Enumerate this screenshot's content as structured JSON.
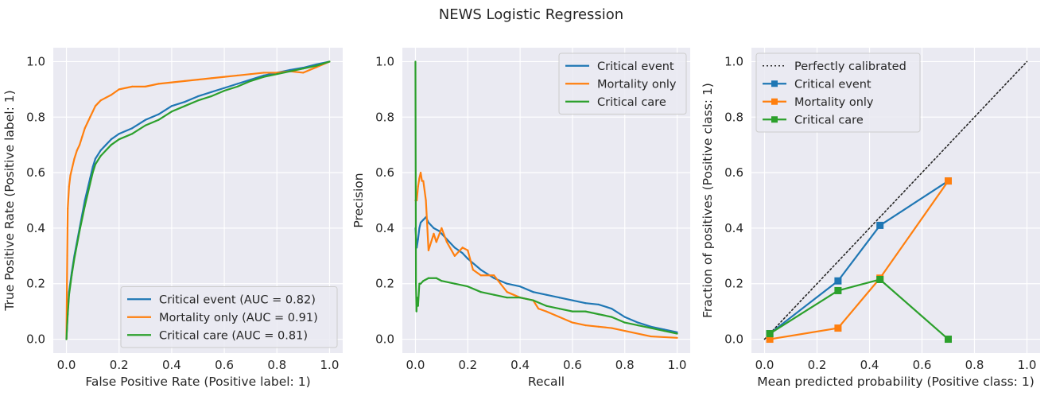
{
  "figure": {
    "title": "NEWS Logistic Regression",
    "background": "#ffffff",
    "axes_facecolor": "#eaeaf2",
    "grid_color": "#ffffff"
  },
  "chart_data": [
    {
      "type": "line",
      "id": "roc",
      "xlabel": "False Positive Rate (Positive label: 1)",
      "ylabel": "True Positive Rate (Positive label: 1)",
      "xlim": [
        -0.05,
        1.05
      ],
      "ylim": [
        -0.05,
        1.05
      ],
      "xticks": [
        0.0,
        0.2,
        0.4,
        0.6,
        0.8,
        1.0
      ],
      "xtick_labels": [
        "0.0",
        "0.2",
        "0.4",
        "0.6",
        "0.8",
        "1.0"
      ],
      "yticks": [
        0.0,
        0.2,
        0.4,
        0.6,
        0.8,
        1.0
      ],
      "ytick_labels": [
        "0.0",
        "0.2",
        "0.4",
        "0.6",
        "0.8",
        "1.0"
      ],
      "grid": true,
      "legend": "lower-right",
      "series": [
        {
          "name": "Critical event (AUC = 0.82)",
          "color": "#1f77b4",
          "style": "solid",
          "marker": "none",
          "x": [
            0,
            0.005,
            0.01,
            0.02,
            0.03,
            0.05,
            0.07,
            0.09,
            0.1,
            0.11,
            0.13,
            0.15,
            0.17,
            0.2,
            0.25,
            0.3,
            0.35,
            0.4,
            0.45,
            0.5,
            0.55,
            0.6,
            0.65,
            0.7,
            0.75,
            0.8,
            0.85,
            0.9,
            0.95,
            1.0
          ],
          "y": [
            0,
            0.1,
            0.17,
            0.24,
            0.3,
            0.4,
            0.5,
            0.58,
            0.62,
            0.65,
            0.68,
            0.7,
            0.72,
            0.74,
            0.76,
            0.79,
            0.81,
            0.84,
            0.855,
            0.875,
            0.89,
            0.905,
            0.92,
            0.935,
            0.95,
            0.96,
            0.97,
            0.978,
            0.99,
            1.0
          ]
        },
        {
          "name": "Mortality only (AUC = 0.91)",
          "color": "#ff7f0e",
          "style": "solid",
          "marker": "none",
          "x": [
            0,
            0.003,
            0.005,
            0.01,
            0.015,
            0.02,
            0.03,
            0.04,
            0.05,
            0.06,
            0.07,
            0.08,
            0.09,
            0.1,
            0.11,
            0.12,
            0.13,
            0.15,
            0.17,
            0.2,
            0.25,
            0.3,
            0.35,
            0.4,
            0.45,
            0.5,
            0.55,
            0.6,
            0.65,
            0.7,
            0.75,
            0.8,
            0.85,
            0.9,
            0.95,
            1.0
          ],
          "y": [
            0,
            0.3,
            0.47,
            0.55,
            0.59,
            0.61,
            0.65,
            0.68,
            0.7,
            0.73,
            0.76,
            0.78,
            0.8,
            0.82,
            0.84,
            0.85,
            0.86,
            0.87,
            0.88,
            0.9,
            0.91,
            0.91,
            0.92,
            0.925,
            0.93,
            0.935,
            0.94,
            0.945,
            0.95,
            0.955,
            0.96,
            0.96,
            0.965,
            0.96,
            0.98,
            1.0
          ]
        },
        {
          "name": "Critical care (AUC = 0.81)",
          "color": "#2ca02c",
          "style": "solid",
          "marker": "none",
          "x": [
            0,
            0.005,
            0.01,
            0.02,
            0.03,
            0.05,
            0.07,
            0.09,
            0.1,
            0.11,
            0.13,
            0.15,
            0.17,
            0.2,
            0.25,
            0.3,
            0.35,
            0.4,
            0.45,
            0.5,
            0.55,
            0.6,
            0.65,
            0.7,
            0.75,
            0.8,
            0.85,
            0.9,
            0.95,
            1.0
          ],
          "y": [
            0,
            0.09,
            0.16,
            0.23,
            0.29,
            0.39,
            0.48,
            0.56,
            0.6,
            0.63,
            0.66,
            0.68,
            0.7,
            0.72,
            0.74,
            0.77,
            0.79,
            0.82,
            0.84,
            0.86,
            0.875,
            0.895,
            0.91,
            0.93,
            0.945,
            0.955,
            0.965,
            0.975,
            0.985,
            1.0
          ]
        }
      ]
    },
    {
      "type": "line",
      "id": "pr",
      "xlabel": "Recall",
      "ylabel": "Precision",
      "xlim": [
        -0.05,
        1.05
      ],
      "ylim": [
        -0.05,
        1.05
      ],
      "xticks": [
        0.0,
        0.2,
        0.4,
        0.6,
        0.8,
        1.0
      ],
      "xtick_labels": [
        "0.0",
        "0.2",
        "0.4",
        "0.6",
        "0.8",
        "1.0"
      ],
      "yticks": [
        0.0,
        0.2,
        0.4,
        0.6,
        0.8,
        1.0
      ],
      "ytick_labels": [
        "0.0",
        "0.2",
        "0.4",
        "0.6",
        "0.8",
        "1.0"
      ],
      "grid": true,
      "legend": "upper-right",
      "series": [
        {
          "name": "Critical event",
          "color": "#1f77b4",
          "style": "solid",
          "marker": "none",
          "x": [
            0,
            0.005,
            0.01,
            0.015,
            0.02,
            0.03,
            0.04,
            0.05,
            0.07,
            0.09,
            0.1,
            0.12,
            0.15,
            0.18,
            0.2,
            0.25,
            0.3,
            0.35,
            0.4,
            0.45,
            0.5,
            0.55,
            0.6,
            0.65,
            0.7,
            0.75,
            0.8,
            0.85,
            0.9,
            0.95,
            1.0
          ],
          "y": [
            0.4,
            0.33,
            0.36,
            0.4,
            0.42,
            0.43,
            0.44,
            0.42,
            0.4,
            0.39,
            0.38,
            0.36,
            0.33,
            0.31,
            0.29,
            0.25,
            0.22,
            0.2,
            0.19,
            0.17,
            0.16,
            0.15,
            0.14,
            0.13,
            0.125,
            0.11,
            0.08,
            0.06,
            0.045,
            0.035,
            0.025
          ]
        },
        {
          "name": "Mortality only",
          "color": "#ff7f0e",
          "style": "solid",
          "marker": "none",
          "x": [
            0,
            0.005,
            0.01,
            0.015,
            0.02,
            0.025,
            0.03,
            0.04,
            0.05,
            0.07,
            0.08,
            0.1,
            0.12,
            0.15,
            0.18,
            0.2,
            0.22,
            0.25,
            0.3,
            0.35,
            0.4,
            0.45,
            0.47,
            0.5,
            0.55,
            0.6,
            0.65,
            0.7,
            0.75,
            0.8,
            0.9,
            1.0
          ],
          "y": [
            0.5,
            0.5,
            0.55,
            0.58,
            0.6,
            0.57,
            0.57,
            0.5,
            0.32,
            0.38,
            0.35,
            0.4,
            0.35,
            0.3,
            0.33,
            0.32,
            0.25,
            0.23,
            0.23,
            0.17,
            0.15,
            0.14,
            0.11,
            0.1,
            0.08,
            0.06,
            0.05,
            0.045,
            0.04,
            0.03,
            0.01,
            0.005
          ]
        },
        {
          "name": "Critical care",
          "color": "#2ca02c",
          "style": "solid",
          "marker": "none",
          "x": [
            0,
            0.002,
            0.004,
            0.006,
            0.01,
            0.015,
            0.02,
            0.03,
            0.05,
            0.08,
            0.1,
            0.15,
            0.2,
            0.25,
            0.3,
            0.35,
            0.4,
            0.45,
            0.5,
            0.55,
            0.6,
            0.65,
            0.7,
            0.75,
            0.8,
            0.85,
            0.9,
            0.95,
            1.0
          ],
          "y": [
            1.0,
            0.2,
            0.1,
            0.15,
            0.12,
            0.2,
            0.2,
            0.21,
            0.22,
            0.22,
            0.21,
            0.2,
            0.19,
            0.17,
            0.16,
            0.15,
            0.15,
            0.14,
            0.12,
            0.11,
            0.1,
            0.1,
            0.09,
            0.08,
            0.06,
            0.05,
            0.04,
            0.03,
            0.02
          ]
        }
      ]
    },
    {
      "type": "line",
      "id": "calibration",
      "xlabel": "Mean predicted probability (Positive class: 1)",
      "ylabel": "Fraction of positives (Positive class: 1)",
      "xlim": [
        -0.05,
        1.05
      ],
      "ylim": [
        -0.05,
        1.05
      ],
      "xticks": [
        0.0,
        0.2,
        0.4,
        0.6,
        0.8,
        1.0
      ],
      "xtick_labels": [
        "0.0",
        "0.2",
        "0.4",
        "0.6",
        "0.8",
        "1.0"
      ],
      "yticks": [
        0.0,
        0.2,
        0.4,
        0.6,
        0.8,
        1.0
      ],
      "ytick_labels": [
        "0.0",
        "0.2",
        "0.4",
        "0.6",
        "0.8",
        "1.0"
      ],
      "grid": true,
      "legend": "upper-left",
      "series": [
        {
          "name": "Perfectly calibrated",
          "color": "#262626",
          "style": "dotted",
          "marker": "none",
          "x": [
            0,
            1
          ],
          "y": [
            0,
            1
          ]
        },
        {
          "name": "Critical event",
          "color": "#1f77b4",
          "style": "solid",
          "marker": "square",
          "x": [
            0.02,
            0.28,
            0.44,
            0.7
          ],
          "y": [
            0.02,
            0.21,
            0.41,
            0.57
          ]
        },
        {
          "name": "Mortality only",
          "color": "#ff7f0e",
          "style": "solid",
          "marker": "square",
          "x": [
            0.02,
            0.28,
            0.44,
            0.7
          ],
          "y": [
            0.0,
            0.04,
            0.22,
            0.57
          ]
        },
        {
          "name": "Critical care",
          "color": "#2ca02c",
          "style": "solid",
          "marker": "square",
          "x": [
            0.02,
            0.28,
            0.44,
            0.7
          ],
          "y": [
            0.02,
            0.175,
            0.215,
            0.0
          ]
        }
      ]
    }
  ]
}
